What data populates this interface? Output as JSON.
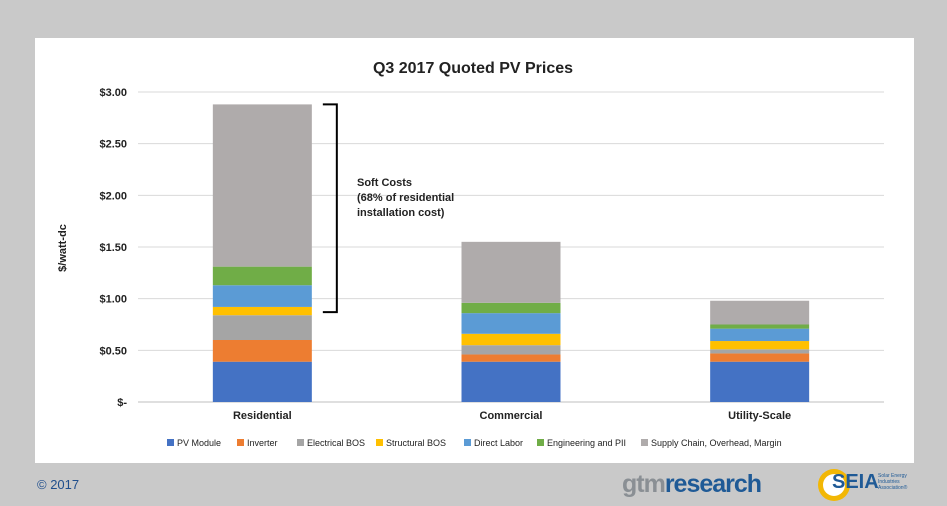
{
  "chart_data": {
    "type": "bar",
    "stacked": true,
    "title": "Q3 2017 Quoted PV Prices",
    "ylabel": "$/watt-dc",
    "xlabel": "",
    "ylim": [
      0,
      3.0
    ],
    "yticks": [
      0,
      0.5,
      1.0,
      1.5,
      2.0,
      2.5,
      3.0
    ],
    "ytick_labels": [
      "$-",
      "$0.50",
      "$1.00",
      "$1.50",
      "$2.00",
      "$2.50",
      "$3.00"
    ],
    "grid": true,
    "legend_position": "bottom",
    "categories": [
      "Residential",
      "Commercial",
      "Utility-Scale"
    ],
    "series": [
      {
        "name": "PV Module",
        "color": "#4472c4",
        "values": [
          0.39,
          0.39,
          0.39
        ]
      },
      {
        "name": "Inverter",
        "color": "#ed7d31",
        "values": [
          0.21,
          0.07,
          0.08
        ]
      },
      {
        "name": "Electrical BOS",
        "color": "#a5a5a5",
        "values": [
          0.24,
          0.09,
          0.04
        ]
      },
      {
        "name": "Structural BOS",
        "color": "#ffc000",
        "values": [
          0.08,
          0.11,
          0.08
        ]
      },
      {
        "name": "Direct Labor",
        "color": "#5b9bd5",
        "values": [
          0.21,
          0.2,
          0.12
        ]
      },
      {
        "name": "Engineering and PII",
        "color": "#70ad47",
        "values": [
          0.18,
          0.1,
          0.04
        ]
      },
      {
        "name": "Supply Chain, Overhead, Margin",
        "color": "#afabab",
        "values": [
          1.57,
          0.59,
          0.23
        ]
      }
    ],
    "annotation": {
      "lines": [
        "Soft Costs",
        "(68% of residential",
        "installation cost)"
      ],
      "y_range": [
        0.87,
        2.88
      ]
    }
  },
  "footer": {
    "copyright": "© 2017",
    "logo_gtm_part1": "gtm",
    "logo_gtm_part2": "research",
    "logo_seia": "SEIA",
    "logo_seia_tagline": "Solar Energy Industries Association®"
  }
}
